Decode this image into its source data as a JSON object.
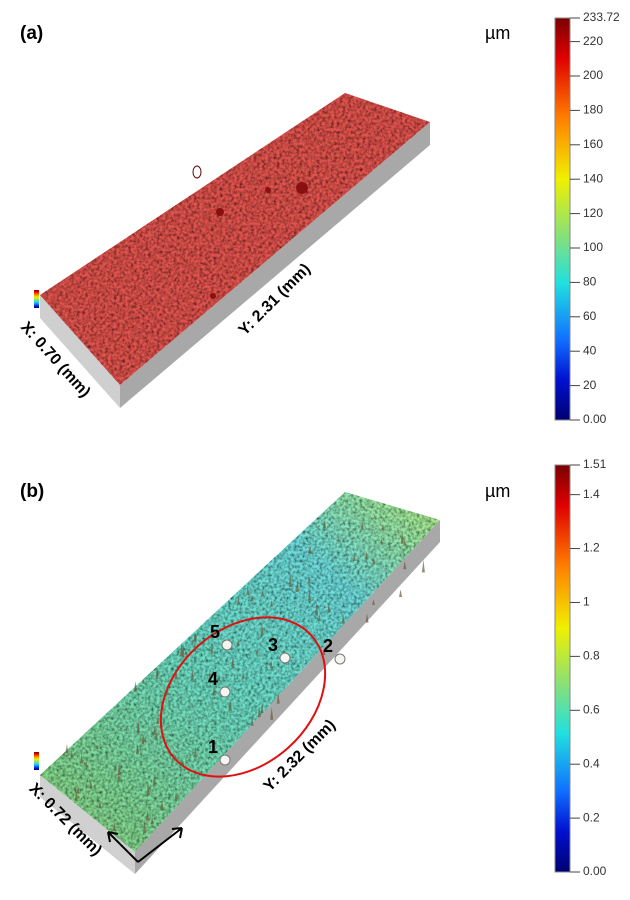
{
  "panels": [
    {
      "label": "(a)",
      "unit": "µm",
      "x_axis": "X: 0.70 (mm)",
      "y_axis": "Y: 2.31 (mm)",
      "colorbar": {
        "range": [
          0,
          233.72
        ],
        "ticks": [
          {
            "value": 0,
            "label": "0.00"
          },
          20,
          40,
          60,
          80,
          100,
          120,
          140,
          160,
          180,
          200,
          220,
          233.72
        ]
      }
    },
    {
      "label": "(b)",
      "unit": "µm",
      "x_axis": "X: 0.72 (mm)",
      "y_axis": "Y: 2.32 (mm)",
      "colorbar": {
        "range": [
          0,
          1.51
        ],
        "ticks": [
          {
            "value": 0,
            "label": "0.00"
          },
          0.2,
          0.4,
          0.6,
          0.8,
          1,
          1.2,
          1.4,
          1.51
        ]
      },
      "points": [
        "1",
        "2",
        "3",
        "4",
        "5"
      ]
    }
  ]
}
